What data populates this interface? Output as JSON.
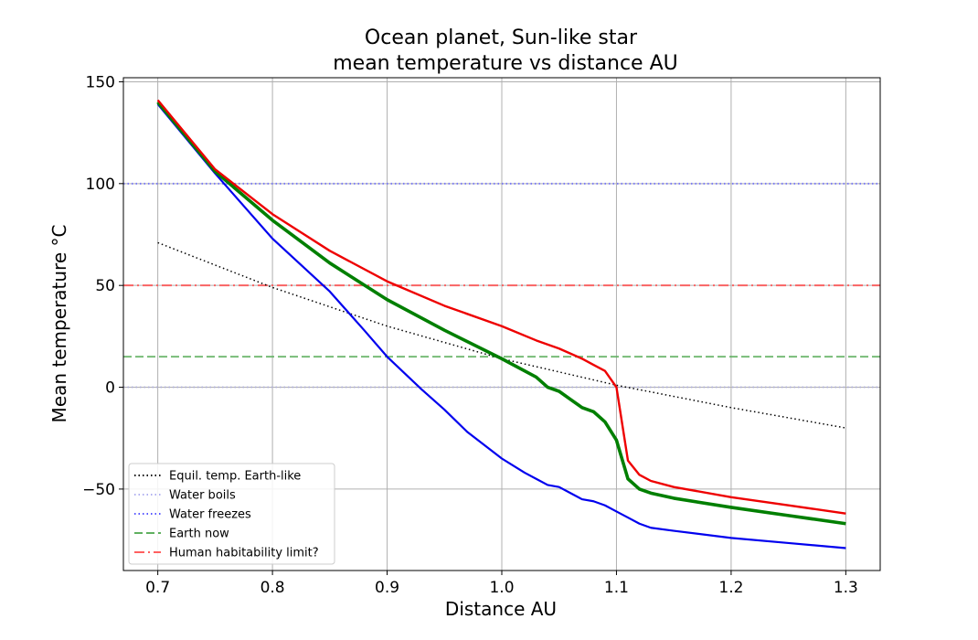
{
  "chart_data": {
    "type": "line",
    "title_line1": "Ocean planet, Sun-like star",
    "title_line2": "mean temperature vs distance AU",
    "xlabel": "Distance AU",
    "ylabel": "Mean temperature °C",
    "xlim": [
      0.67,
      1.33
    ],
    "ylim": [
      -90,
      152
    ],
    "xticks": [
      0.7,
      0.8,
      0.9,
      1.0,
      1.1,
      1.2,
      1.3
    ],
    "xtick_labels": [
      "0.7",
      "0.8",
      "0.9",
      "1.0",
      "1.1",
      "1.2",
      "1.3"
    ],
    "yticks": [
      150,
      100,
      50,
      0,
      -50
    ],
    "ytick_labels": [
      "150",
      "100",
      "50",
      "0",
      "−50"
    ],
    "grid": true,
    "legend_position": "lower-left",
    "legend": [
      {
        "label": "Equil. temp. Earth-like",
        "color": "#000000",
        "style": "dotted"
      },
      {
        "label": "Water boils",
        "color": "#b0b0f0",
        "style": "dotted"
      },
      {
        "label": "Water freezes",
        "color": "#5555ff",
        "style": "dotted"
      },
      {
        "label": "Earth now",
        "color": "#60b060",
        "style": "dashed"
      },
      {
        "label": "Human habitability limit?",
        "color": "#ff6060",
        "style": "dashdot"
      }
    ],
    "hlines": [
      {
        "y": 100,
        "color": "#6a6aff",
        "style": "dotted"
      },
      {
        "y": 0,
        "color": "#b0b0e0",
        "style": "dotted"
      },
      {
        "y": 15,
        "color": "#60b060",
        "style": "dashed"
      },
      {
        "y": 50,
        "color": "#ff5050",
        "style": "dashdot"
      }
    ],
    "series": [
      {
        "color": "#000000",
        "style": "dotted",
        "x": [
          0.7,
          0.8,
          0.9,
          1.0,
          1.1,
          1.2,
          1.3
        ],
        "y": [
          71,
          49,
          30,
          14,
          1,
          -10,
          -20
        ]
      },
      {
        "color": "#0000ee",
        "style": "solid",
        "x": [
          0.7,
          0.75,
          0.8,
          0.85,
          0.88,
          0.9,
          0.93,
          0.95,
          0.97,
          1.0,
          1.02,
          1.03,
          1.04,
          1.05,
          1.06,
          1.07,
          1.08,
          1.09,
          1.1,
          1.11,
          1.12,
          1.13,
          1.15,
          1.2,
          1.25,
          1.3
        ],
        "y": [
          139,
          105,
          73,
          47,
          28,
          15,
          -1,
          -11,
          -22,
          -35,
          -42,
          -45,
          -48,
          -49,
          -52,
          -55,
          -56,
          -58,
          -61,
          -64,
          -67,
          -69,
          -70.5,
          -74,
          -76.5,
          -79
        ]
      },
      {
        "color": "#007f00",
        "style": "solid",
        "x": [
          0.7,
          0.75,
          0.8,
          0.85,
          0.9,
          0.95,
          1.0,
          1.03,
          1.04,
          1.05,
          1.06,
          1.07,
          1.08,
          1.09,
          1.1,
          1.11,
          1.12,
          1.13,
          1.15,
          1.2,
          1.25,
          1.3
        ],
        "y": [
          140,
          106,
          82,
          61,
          43,
          28,
          14,
          5,
          0,
          -2,
          -6,
          -10,
          -12,
          -17,
          -26,
          -45,
          -50,
          -52,
          -54.5,
          -59,
          -63,
          -67
        ]
      },
      {
        "color": "#ee0000",
        "style": "solid",
        "x": [
          0.7,
          0.75,
          0.8,
          0.85,
          0.9,
          0.95,
          1.0,
          1.03,
          1.05,
          1.07,
          1.08,
          1.09,
          1.1,
          1.11,
          1.12,
          1.13,
          1.15,
          1.2,
          1.25,
          1.3
        ],
        "y": [
          141,
          107,
          85,
          67,
          52,
          40,
          30,
          23,
          19,
          14,
          11,
          8,
          0,
          -36,
          -43,
          -46,
          -49,
          -54,
          -58,
          -62
        ]
      }
    ]
  }
}
